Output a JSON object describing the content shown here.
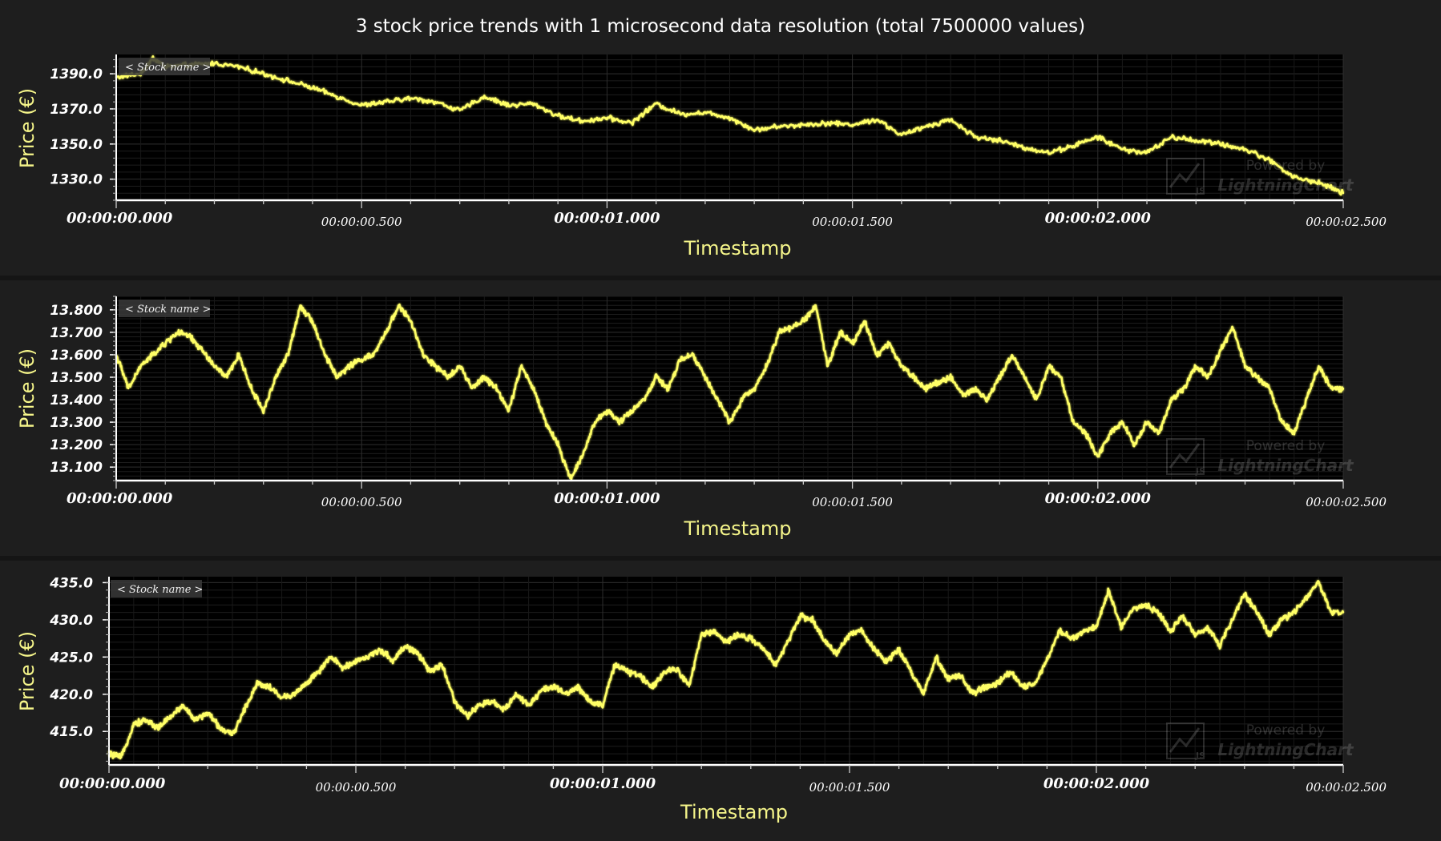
{
  "title": "3 stock price trends with 1 microsecond data resolution (total 7500000 values)",
  "colors": {
    "series": "#ffff66",
    "text": "#ffffff",
    "axis_title": "#f5f58a",
    "plot_bg": "#000000",
    "grid": "#2a2a2a",
    "label_chip": "#3a3a3a"
  },
  "watermark": {
    "line1": "Powered by",
    "line2": "LightningChart",
    "mark": "JS"
  },
  "chart_data": [
    {
      "type": "line",
      "legend_label": "< Stock name >",
      "xlabel": "Timestamp",
      "ylabel": "Price (€)",
      "xlim": [
        0,
        2.5
      ],
      "ylim": [
        1318,
        1401
      ],
      "y_ticks": [
        1330.0,
        1350.0,
        1370.0,
        1390.0
      ],
      "y_tick_labels": [
        "1330.0",
        "1350.0",
        "1370.0",
        "1390.0"
      ],
      "x_ticks": [
        0,
        0.5,
        1.0,
        1.5,
        2.0,
        2.5
      ],
      "x_tick_labels": [
        "00:00:00.000",
        "00:00:00.500",
        "00:00:01.000",
        "00:00:01.500",
        "00:00:02.000",
        "00:00:02.500"
      ],
      "x": [
        0,
        0.05,
        0.075,
        0.1,
        0.15,
        0.2,
        0.25,
        0.3,
        0.35,
        0.4,
        0.45,
        0.5,
        0.55,
        0.6,
        0.65,
        0.7,
        0.75,
        0.8,
        0.85,
        0.9,
        0.95,
        1.0,
        1.05,
        1.1,
        1.15,
        1.2,
        1.25,
        1.3,
        1.35,
        1.4,
        1.45,
        1.5,
        1.55,
        1.6,
        1.65,
        1.7,
        1.75,
        1.8,
        1.85,
        1.9,
        1.95,
        2.0,
        2.05,
        2.1,
        2.15,
        2.2,
        2.25,
        2.3,
        2.35,
        2.4,
        2.45,
        2.5
      ],
      "y": [
        1388,
        1390,
        1399,
        1394,
        1395,
        1396,
        1394,
        1390,
        1386,
        1382,
        1377,
        1372,
        1374,
        1376,
        1374,
        1369,
        1377,
        1372,
        1373,
        1366,
        1363,
        1365,
        1362,
        1373,
        1367,
        1368,
        1365,
        1358,
        1360,
        1361,
        1362,
        1361,
        1364,
        1355,
        1360,
        1364,
        1354,
        1352,
        1348,
        1345,
        1349,
        1354,
        1347,
        1345,
        1354,
        1352,
        1350,
        1347,
        1341,
        1331,
        1328,
        1322
      ]
    },
    {
      "type": "line",
      "legend_label": "< Stock name >",
      "xlabel": "Timestamp",
      "ylabel": "Price (€)",
      "xlim": [
        0,
        2.5
      ],
      "ylim": [
        13.04,
        13.86
      ],
      "y_ticks": [
        13.1,
        13.2,
        13.3,
        13.4,
        13.5,
        13.6,
        13.7,
        13.8
      ],
      "y_tick_labels": [
        "13.100",
        "13.200",
        "13.300",
        "13.400",
        "13.500",
        "13.600",
        "13.700",
        "13.800"
      ],
      "x_ticks": [
        0,
        0.5,
        1.0,
        1.5,
        2.0,
        2.5
      ],
      "x_tick_labels": [
        "00:00:00.000",
        "00:00:00.500",
        "00:00:01.000",
        "00:00:01.500",
        "00:00:02.000",
        "00:00:02.500"
      ],
      "x": [
        0,
        0.025,
        0.05,
        0.075,
        0.1,
        0.125,
        0.15,
        0.175,
        0.2,
        0.225,
        0.25,
        0.275,
        0.3,
        0.325,
        0.35,
        0.375,
        0.4,
        0.425,
        0.45,
        0.475,
        0.5,
        0.525,
        0.55,
        0.575,
        0.6,
        0.625,
        0.65,
        0.675,
        0.7,
        0.725,
        0.75,
        0.775,
        0.8,
        0.825,
        0.85,
        0.875,
        0.9,
        0.925,
        0.95,
        0.975,
        1.0,
        1.025,
        1.05,
        1.075,
        1.1,
        1.125,
        1.15,
        1.175,
        1.2,
        1.225,
        1.25,
        1.275,
        1.3,
        1.325,
        1.35,
        1.375,
        1.4,
        1.425,
        1.45,
        1.475,
        1.5,
        1.525,
        1.55,
        1.575,
        1.6,
        1.625,
        1.65,
        1.675,
        1.7,
        1.725,
        1.75,
        1.775,
        1.8,
        1.825,
        1.85,
        1.875,
        1.9,
        1.925,
        1.95,
        1.975,
        2.0,
        2.025,
        2.05,
        2.075,
        2.1,
        2.125,
        2.15,
        2.175,
        2.2,
        2.225,
        2.25,
        2.275,
        2.3,
        2.325,
        2.35,
        2.375,
        2.4,
        2.425,
        2.45,
        2.475,
        2.5
      ],
      "y": [
        13.6,
        13.45,
        13.55,
        13.6,
        13.65,
        13.7,
        13.68,
        13.62,
        13.55,
        13.5,
        13.6,
        13.45,
        13.35,
        13.5,
        13.6,
        13.82,
        13.75,
        13.6,
        13.5,
        13.55,
        13.58,
        13.6,
        13.7,
        13.82,
        13.75,
        13.6,
        13.55,
        13.5,
        13.55,
        13.45,
        13.5,
        13.45,
        13.35,
        13.55,
        13.45,
        13.3,
        13.2,
        13.05,
        13.15,
        13.3,
        13.35,
        13.3,
        13.35,
        13.4,
        13.5,
        13.45,
        13.58,
        13.6,
        13.5,
        13.4,
        13.3,
        13.4,
        13.45,
        13.55,
        13.7,
        13.72,
        13.75,
        13.82,
        13.55,
        13.7,
        13.65,
        13.75,
        13.6,
        13.65,
        13.55,
        13.5,
        13.45,
        13.48,
        13.5,
        13.42,
        13.45,
        13.4,
        13.5,
        13.6,
        13.5,
        13.4,
        13.55,
        13.5,
        13.3,
        13.25,
        13.15,
        13.25,
        13.3,
        13.2,
        13.3,
        13.25,
        13.4,
        13.45,
        13.55,
        13.5,
        13.62,
        13.72,
        13.55,
        13.5,
        13.45,
        13.3,
        13.25,
        13.4,
        13.55,
        13.45,
        13.45
      ]
    },
    {
      "type": "line",
      "legend_label": "< Stock name >",
      "xlabel": "Timestamp",
      "ylabel": "Price (€)",
      "xlim": [
        0,
        2.5
      ],
      "ylim": [
        410.5,
        435.8
      ],
      "y_ticks": [
        415.0,
        420.0,
        425.0,
        430.0,
        435.0
      ],
      "y_tick_labels": [
        "415.0",
        "420.0",
        "425.0",
        "430.0",
        "435.0"
      ],
      "x_ticks": [
        0,
        0.5,
        1.0,
        1.5,
        2.0,
        2.5
      ],
      "x_tick_labels": [
        "00:00:00.000",
        "00:00:00.500",
        "00:00:01.000",
        "00:00:01.500",
        "00:00:02.000",
        "00:00:02.500"
      ],
      "x": [
        0,
        0.025,
        0.05,
        0.075,
        0.1,
        0.125,
        0.15,
        0.175,
        0.2,
        0.225,
        0.25,
        0.275,
        0.3,
        0.325,
        0.35,
        0.375,
        0.4,
        0.425,
        0.45,
        0.475,
        0.5,
        0.525,
        0.55,
        0.575,
        0.6,
        0.625,
        0.65,
        0.675,
        0.7,
        0.725,
        0.75,
        0.775,
        0.8,
        0.825,
        0.85,
        0.875,
        0.9,
        0.925,
        0.95,
        0.975,
        1.0,
        1.025,
        1.05,
        1.075,
        1.1,
        1.125,
        1.15,
        1.175,
        1.2,
        1.225,
        1.25,
        1.275,
        1.3,
        1.325,
        1.35,
        1.375,
        1.4,
        1.425,
        1.45,
        1.475,
        1.5,
        1.525,
        1.55,
        1.575,
        1.6,
        1.625,
        1.65,
        1.675,
        1.7,
        1.725,
        1.75,
        1.775,
        1.8,
        1.825,
        1.85,
        1.875,
        1.9,
        1.925,
        1.95,
        1.975,
        2.0,
        2.025,
        2.05,
        2.075,
        2.1,
        2.125,
        2.15,
        2.175,
        2.2,
        2.225,
        2.25,
        2.275,
        2.3,
        2.325,
        2.35,
        2.375,
        2.4,
        2.425,
        2.45,
        2.475,
        2.5
      ],
      "y": [
        412,
        411.5,
        416,
        416.5,
        415.5,
        417,
        418.5,
        416.5,
        417.5,
        415.5,
        414.5,
        418,
        421.5,
        421,
        419.5,
        420,
        421.5,
        423,
        425,
        423.5,
        424.5,
        425,
        426,
        424.5,
        426.5,
        425.5,
        423,
        424,
        419,
        417,
        418.5,
        419,
        418,
        420,
        418.5,
        420.5,
        421,
        420,
        421,
        419,
        418.5,
        424,
        423,
        422.5,
        421,
        423,
        423.5,
        421,
        428,
        428.5,
        427,
        428,
        427.5,
        426,
        424,
        427,
        430.5,
        430,
        427,
        425.5,
        428,
        428.5,
        426,
        424.5,
        426,
        423,
        420,
        425,
        422,
        422.5,
        420,
        421,
        421.5,
        423,
        421,
        421.5,
        424.5,
        428.5,
        427.5,
        428.5,
        429,
        434,
        429,
        431.5,
        432,
        431,
        428.5,
        430.5,
        428,
        429,
        426.5,
        430,
        433.5,
        431,
        428,
        430,
        431,
        433,
        435.2,
        431,
        431
      ]
    }
  ]
}
